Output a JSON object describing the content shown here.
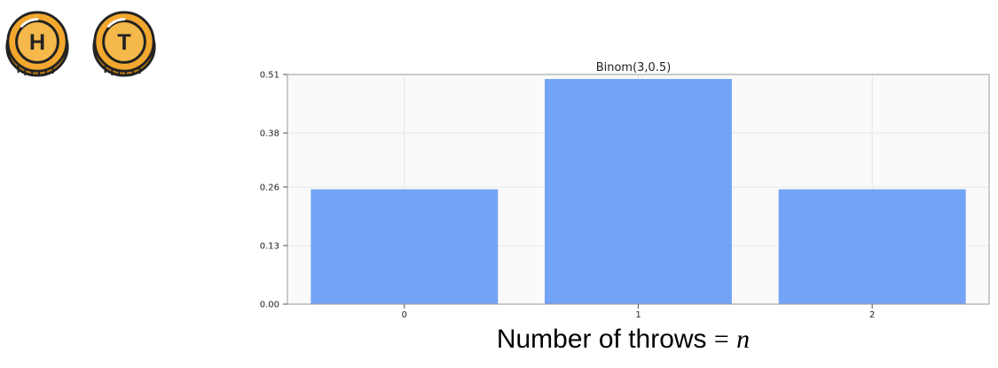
{
  "coins": {
    "heads": {
      "icon": "heads-coin-icon",
      "letter": "H"
    },
    "tails": {
      "icon": "tails-coin-icon",
      "letter": "T"
    }
  },
  "caption": {
    "text": "Number of throws",
    "operator": "=",
    "variable": "n"
  },
  "colors": {
    "bar": "#73a3f6",
    "coin_face": "#f2a72e",
    "coin_outline": "#222222",
    "grid": "#e6e6e6"
  },
  "chart_data": {
    "type": "bar",
    "title": "Binom(3,0.5)",
    "xlabel": "",
    "ylabel": "",
    "categories": [
      "0",
      "1",
      "2"
    ],
    "values": [
      0.255,
      0.5,
      0.255
    ],
    "yticks": [
      0.0,
      0.13,
      0.26,
      0.38,
      0.51
    ],
    "ytick_labels": [
      "0.00",
      "0.13",
      "0.26",
      "0.38",
      "0.51"
    ],
    "ylim": [
      0,
      0.51
    ],
    "grid": true
  }
}
